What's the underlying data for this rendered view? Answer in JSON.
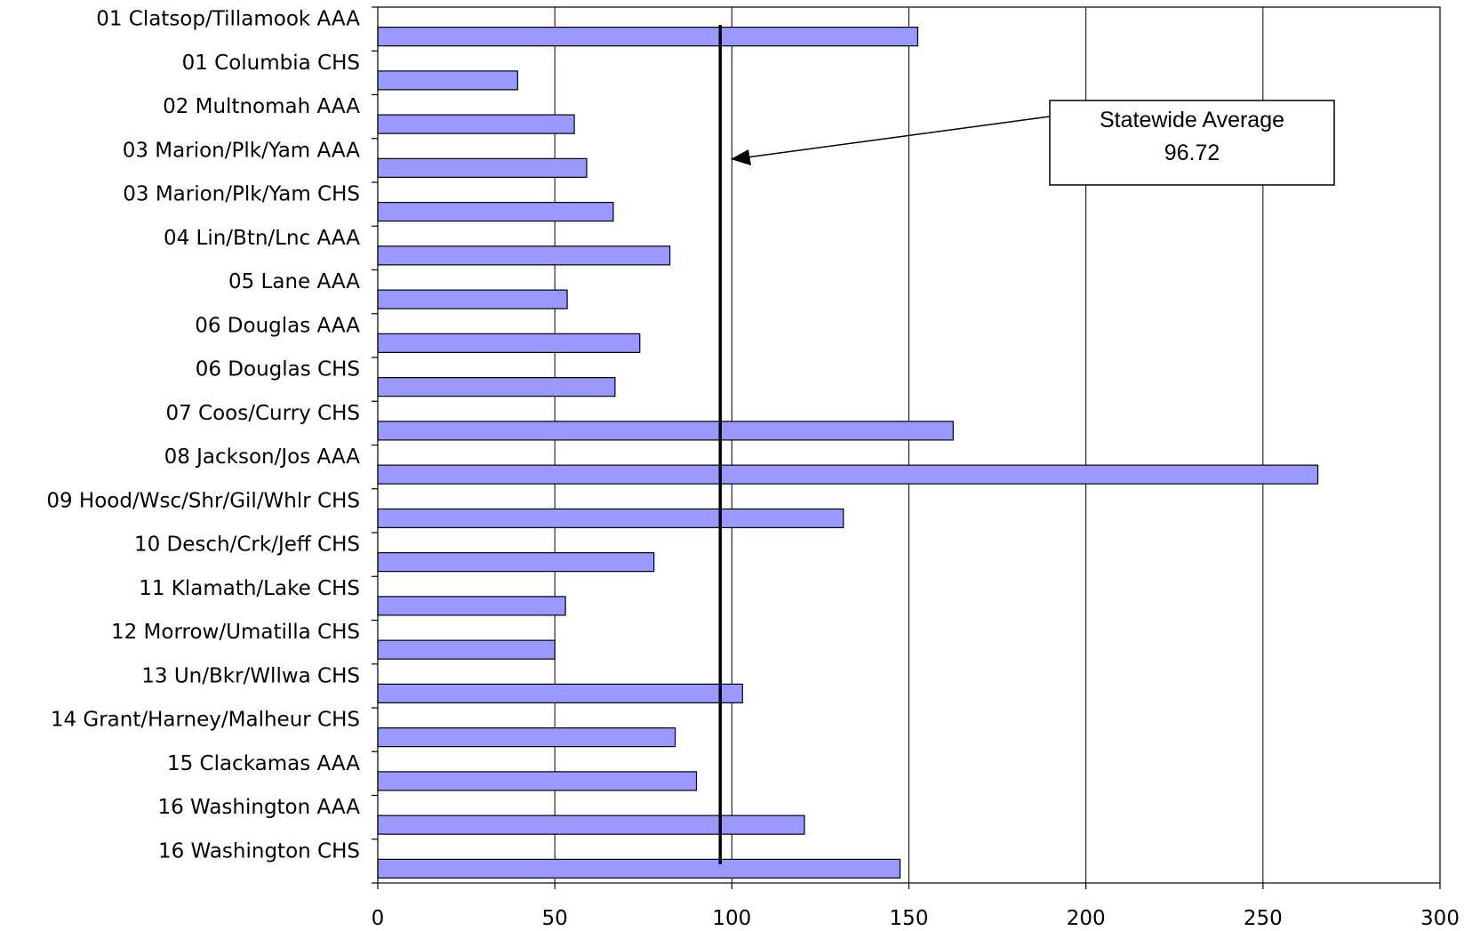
{
  "chart_data": {
    "type": "bar",
    "orientation": "horizontal",
    "categories": [
      "01  Clatsop/Tillamook AAA",
      "01  Columbia CHS",
      "02  Multnomah AAA",
      "03  Marion/Plk/Yam AAA",
      "03  Marion/Plk/Yam CHS",
      "04  Lin/Btn/Lnc AAA",
      "05  Lane AAA",
      "06  Douglas AAA",
      "06  Douglas CHS",
      "07  Coos/Curry CHS",
      "08  Jackson/Jos AAA",
      "09  Hood/Wsc/Shr/Gil/Whlr CHS",
      "10  Desch/Crk/Jeff CHS",
      "11  Klamath/Lake CHS",
      "12  Morrow/Umatilla CHS",
      "13  Un/Bkr/Wllwa CHS",
      "14  Grant/Harney/Malheur CHS",
      "15  Clackamas AAA",
      "16  Washington AAA",
      "16  Washington CHS"
    ],
    "values": [
      152.5,
      39.5,
      55.5,
      59,
      66.5,
      82.5,
      53.5,
      74,
      67,
      162.5,
      265.5,
      131.5,
      78,
      53,
      50,
      103,
      84,
      90,
      120.5,
      147.5
    ],
    "xlim": [
      0,
      300
    ],
    "xticks": [
      0,
      50,
      100,
      150,
      200,
      250,
      300
    ],
    "grid": true,
    "bar_color": "#9999ff",
    "reference_line": {
      "value": 96.72
    },
    "annotation": {
      "line1": "Statewide Average",
      "line2": "96.72"
    }
  }
}
